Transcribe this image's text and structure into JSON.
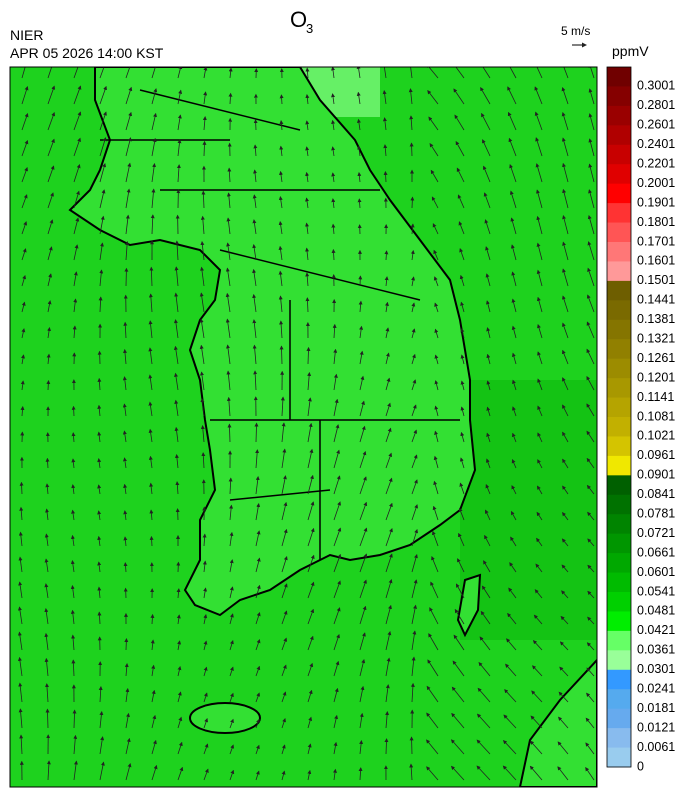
{
  "header": {
    "title": "O",
    "title_subscript": "3",
    "agency": "NIER",
    "datetime": "APR 05 2026 14:00 KST"
  },
  "wind_legend": {
    "label": "5 m/s"
  },
  "colorbar": {
    "unit": "ppmV",
    "labels": [
      "0.3001",
      "0.2801",
      "0.2601",
      "0.2401",
      "0.2201",
      "0.2001",
      "0.1901",
      "0.1801",
      "0.1701",
      "0.1601",
      "0.1501",
      "0.1441",
      "0.1381",
      "0.1321",
      "0.1261",
      "0.1201",
      "0.1141",
      "0.1081",
      "0.1021",
      "0.0961",
      "0.0901",
      "0.0841",
      "0.0781",
      "0.0721",
      "0.0661",
      "0.0601",
      "0.0541",
      "0.0481",
      "0.0421",
      "0.0361",
      "0.0301",
      "0.0241",
      "0.0181",
      "0.0121",
      "0.0061",
      "0"
    ],
    "colors": [
      "#700000",
      "#850000",
      "#9a0000",
      "#b00000",
      "#c80000",
      "#e00000",
      "#ff0000",
      "#ff3333",
      "#ff5555",
      "#ff7777",
      "#ff9999",
      "#6e5e00",
      "#7a6a00",
      "#857500",
      "#918000",
      "#9c8c00",
      "#a89800",
      "#b5a400",
      "#c2b000",
      "#d4c400",
      "#f0e800",
      "#006000",
      "#007200",
      "#008400",
      "#009600",
      "#00a800",
      "#00bb00",
      "#00d000",
      "#00ee00",
      "#66ff66",
      "#99ff99",
      "#3399ff",
      "#55aaee",
      "#66aaee",
      "#88bbee",
      "#99ccee"
    ]
  }
}
